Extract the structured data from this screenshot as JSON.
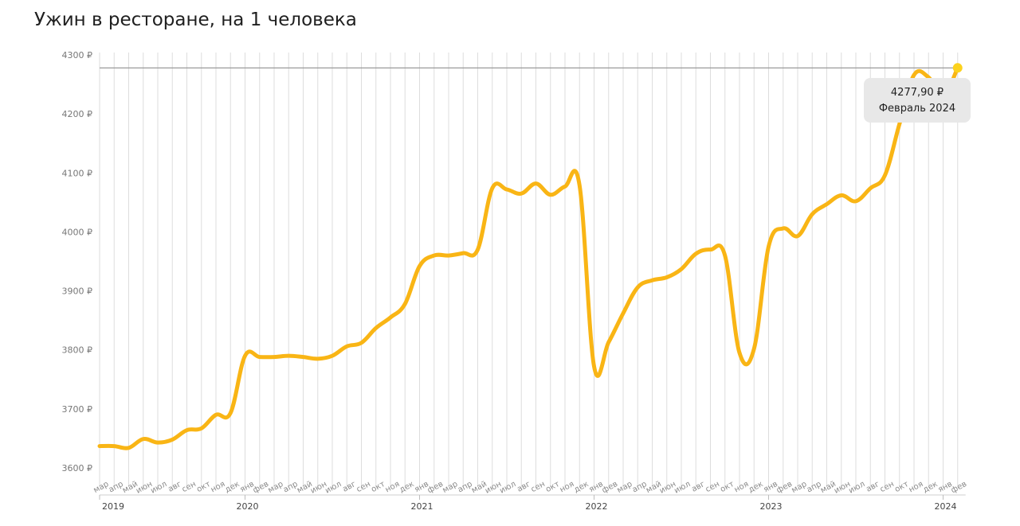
{
  "chart_data": {
    "type": "line",
    "title": "Ужин в ресторане, на 1 человека",
    "y_ticks": [
      "3600 ₽",
      "3700 ₽",
      "3800 ₽",
      "3900 ₽",
      "4000 ₽",
      "4100 ₽",
      "4200 ₽",
      "4300 ₽"
    ],
    "ylim": [
      3600,
      4300
    ],
    "years": [
      {
        "label": "2019",
        "month_index": 0
      },
      {
        "label": "2020",
        "month_index": 10
      },
      {
        "label": "2021",
        "month_index": 22
      },
      {
        "label": "2022",
        "month_index": 34
      },
      {
        "label": "2023",
        "month_index": 46
      },
      {
        "label": "2024",
        "month_index": 58
      }
    ],
    "months": [
      "мар",
      "апр",
      "май",
      "июн",
      "июл",
      "авг",
      "сен",
      "окт",
      "ноя",
      "дек",
      "янв",
      "фев",
      "мар",
      "апр",
      "май",
      "июн",
      "июл",
      "авг",
      "сен",
      "окт",
      "ноя",
      "дек",
      "янв",
      "фев",
      "мар",
      "апр",
      "май",
      "июн",
      "июл",
      "авг",
      "сен",
      "окт",
      "ноя",
      "дек",
      "янв",
      "фев",
      "мар",
      "апр",
      "май",
      "июн",
      "июл",
      "авг",
      "сен",
      "окт",
      "ноя",
      "дек",
      "янв",
      "фев",
      "мар",
      "апр",
      "май",
      "июн",
      "июл",
      "авг",
      "сен",
      "окт",
      "ноя",
      "дек",
      "янв",
      "фев"
    ],
    "series": [
      {
        "color": "#f9b515",
        "values": [
          3637,
          3637,
          3634,
          3649,
          3643,
          3648,
          3664,
          3667,
          3690,
          3693,
          3790,
          3788,
          3788,
          3790,
          3788,
          3785,
          3790,
          3806,
          3812,
          3837,
          3855,
          3878,
          3942,
          3960,
          3960,
          3964,
          3970,
          4074,
          4072,
          4065,
          4082,
          4063,
          4077,
          4079,
          3772,
          3813,
          3862,
          3906,
          3918,
          3923,
          3937,
          3963,
          3970,
          3960,
          3795,
          3802,
          3975,
          4006,
          3993,
          4030,
          4047,
          4062,
          4052,
          4074,
          4096,
          4183,
          4266,
          4262,
          4230,
          4278
        ]
      }
    ],
    "reference_line": 4277.9,
    "highlight": {
      "value": "4277,90 ₽",
      "label": "Февраль 2024"
    }
  }
}
